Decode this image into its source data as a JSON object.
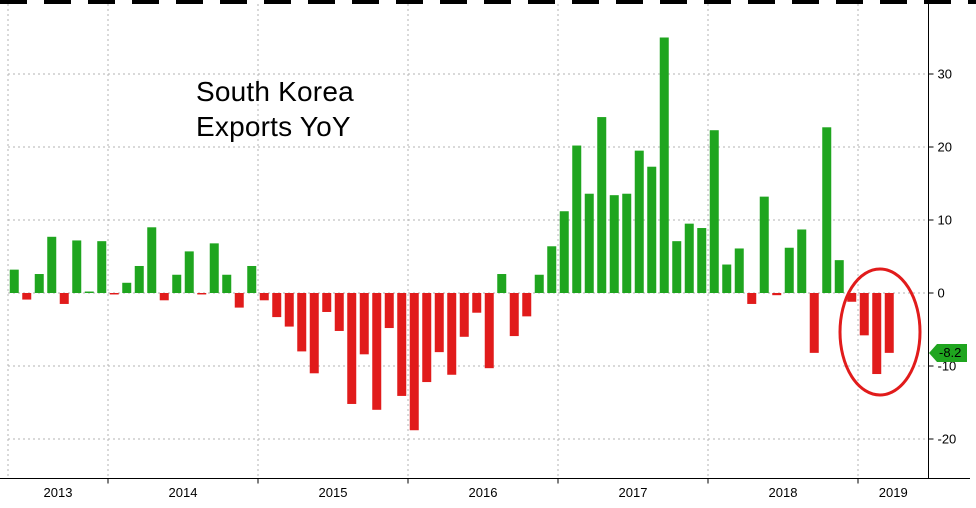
{
  "chart_data": {
    "type": "bar",
    "title": "South Korea Exports YoY",
    "title_line1": "South Korea",
    "title_line2": "Exports YoY",
    "xlabel": "",
    "ylabel": "",
    "ylim": [
      -25,
      40
    ],
    "yticks": [
      30,
      20,
      10,
      0,
      -10,
      -20
    ],
    "grid": "dotted",
    "legend": "none",
    "year_labels": [
      "2013",
      "2014",
      "2015",
      "2016",
      "2017",
      "2018",
      "2019"
    ],
    "months": [
      "2013-05",
      "2013-06",
      "2013-07",
      "2013-08",
      "2013-09",
      "2013-10",
      "2013-11",
      "2013-12",
      "2014-01",
      "2014-02",
      "2014-03",
      "2014-04",
      "2014-05",
      "2014-06",
      "2014-07",
      "2014-08",
      "2014-09",
      "2014-10",
      "2014-11",
      "2014-12",
      "2015-01",
      "2015-02",
      "2015-03",
      "2015-04",
      "2015-05",
      "2015-06",
      "2015-07",
      "2015-08",
      "2015-09",
      "2015-10",
      "2015-11",
      "2015-12",
      "2016-01",
      "2016-02",
      "2016-03",
      "2016-04",
      "2016-05",
      "2016-06",
      "2016-07",
      "2016-08",
      "2016-09",
      "2016-10",
      "2016-11",
      "2016-12",
      "2017-01",
      "2017-02",
      "2017-03",
      "2017-04",
      "2017-05",
      "2017-06",
      "2017-07",
      "2017-08",
      "2017-09",
      "2017-10",
      "2017-11",
      "2017-12",
      "2018-01",
      "2018-02",
      "2018-03",
      "2018-04",
      "2018-05",
      "2018-06",
      "2018-07",
      "2018-08",
      "2018-09",
      "2018-10",
      "2018-11",
      "2018-12",
      "2019-01",
      "2019-02",
      "2019-03"
    ],
    "values": [
      3.2,
      -0.9,
      2.6,
      7.7,
      -1.5,
      7.2,
      0.2,
      7.1,
      -0.2,
      1.4,
      3.7,
      9.0,
      -1.0,
      2.5,
      5.7,
      -0.2,
      6.8,
      2.5,
      -2.0,
      3.7,
      -1.0,
      -3.3,
      -4.6,
      -8.0,
      -11.0,
      -2.6,
      -5.2,
      -15.2,
      -8.4,
      -16.0,
      -4.8,
      -14.1,
      -18.8,
      -12.2,
      -8.1,
      -11.2,
      -6.0,
      -2.7,
      -10.3,
      2.6,
      -5.9,
      -3.2,
      2.5,
      6.4,
      11.2,
      20.2,
      13.6,
      24.1,
      13.4,
      13.6,
      19.5,
      17.3,
      35.0,
      7.1,
      9.5,
      8.9,
      22.3,
      3.9,
      6.1,
      -1.5,
      13.2,
      -0.3,
      6.2,
      8.7,
      -8.2,
      22.7,
      4.5,
      -1.2,
      -5.8,
      -11.1,
      -8.2
    ],
    "positive_color": "#1fa51f",
    "negative_color": "#e11b1b",
    "grid_color": "#b3b3b3",
    "axis_color": "#000000",
    "current_value_label": "-8.2",
    "annotation": {
      "type": "ellipse",
      "highlighted_months": [
        "2019-01",
        "2019-02",
        "2019-03"
      ],
      "color": "#e11b1b"
    }
  }
}
